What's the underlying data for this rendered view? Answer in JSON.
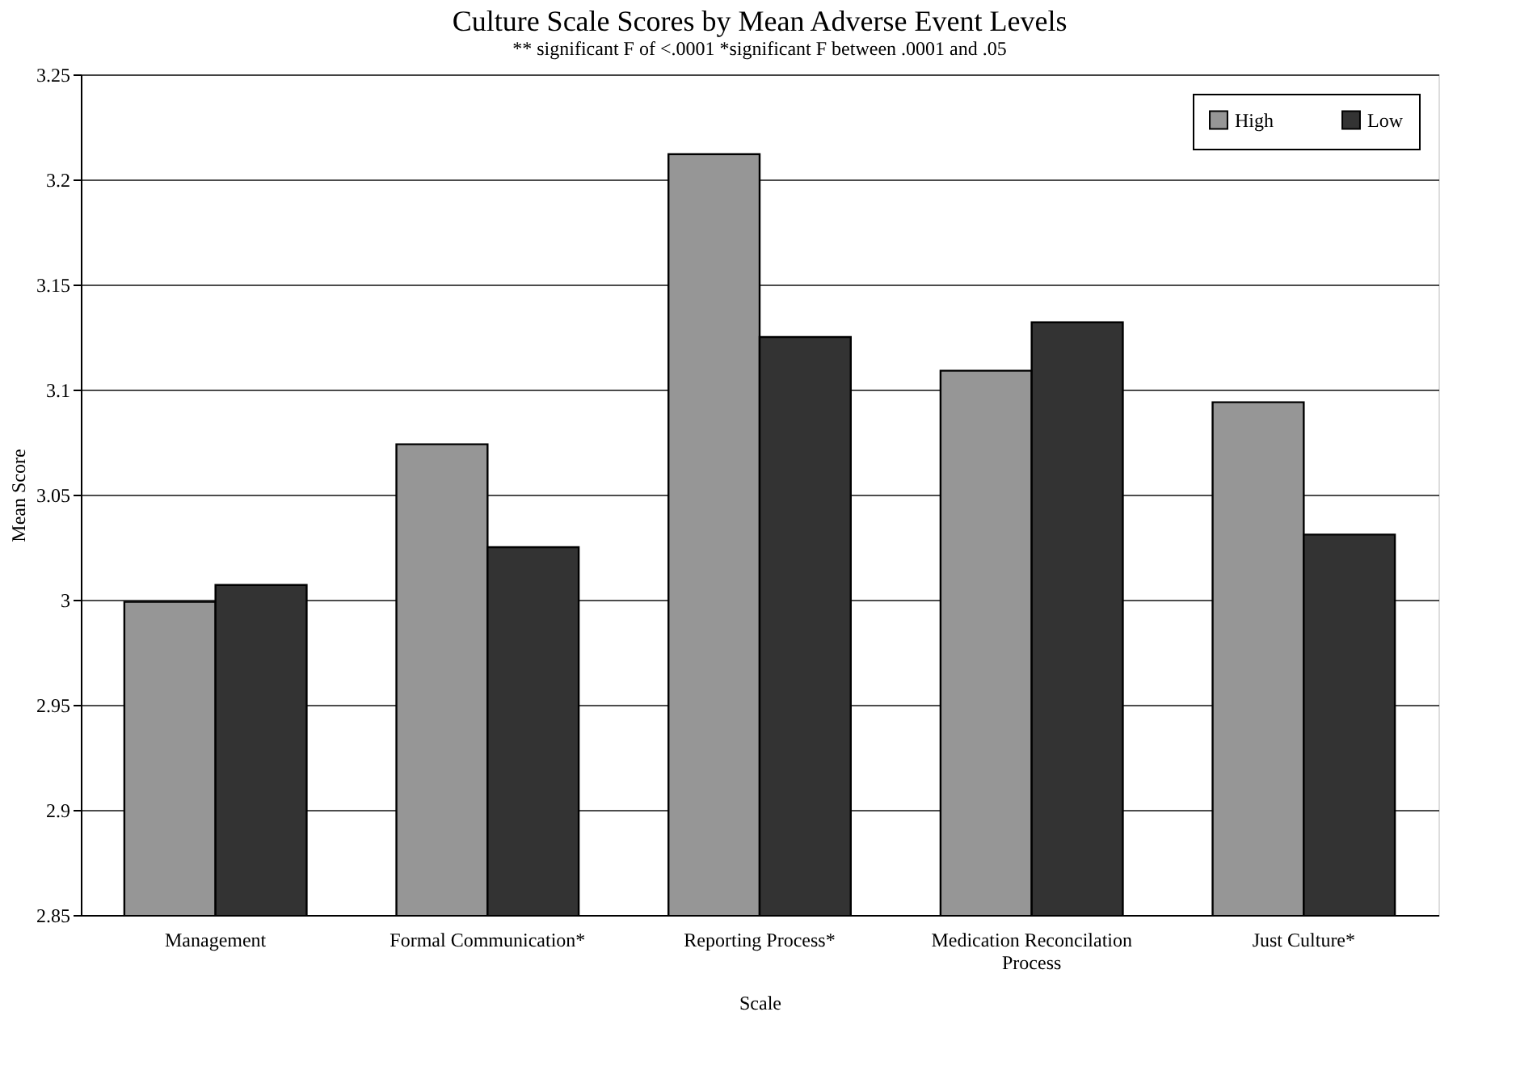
{
  "chart_data": {
    "type": "bar",
    "title": "Culture Scale Scores by Mean Adverse Event Levels",
    "subtitle": "** significant F of <.0001      *significant F between .0001 and .05",
    "xlabel": "Scale",
    "ylabel": "Mean Score",
    "categories": [
      "Management",
      "Formal Communication*",
      "Reporting Process*",
      "Medication Reconcilation Process",
      "Just Culture*"
    ],
    "series": [
      {
        "name": "High",
        "color": "#969696",
        "values": [
          2.999,
          3.074,
          3.212,
          3.109,
          3.094
        ]
      },
      {
        "name": "Low",
        "color": "#333333",
        "values": [
          3.007,
          3.025,
          3.125,
          3.132,
          3.031
        ]
      }
    ],
    "ylim": [
      2.85,
      3.25
    ],
    "yticks": [
      2.85,
      2.9,
      2.95,
      3,
      3.05,
      3.1,
      3.15,
      3.2,
      3.25
    ],
    "grid": "y",
    "legend": "top right"
  }
}
